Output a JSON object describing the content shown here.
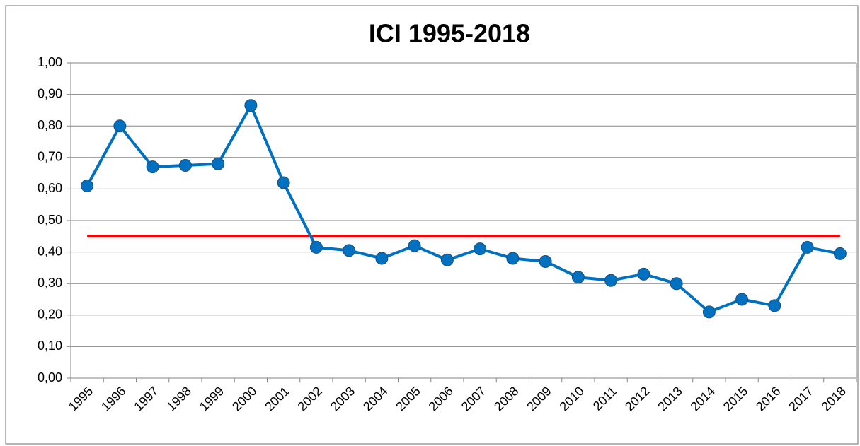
{
  "chart_data": {
    "type": "line",
    "title": "ICI 1995-2018",
    "categories": [
      "1995",
      "1996",
      "1997",
      "1998",
      "1999",
      "2000",
      "2001",
      "2002",
      "2003",
      "2004",
      "2005",
      "2006",
      "2007",
      "2008",
      "2009",
      "2010",
      "2011",
      "2012",
      "2013",
      "2014",
      "2015",
      "2016",
      "2017",
      "2018"
    ],
    "series": [
      {
        "color": "#0070c0",
        "markers": true,
        "values": [
          0.61,
          0.8,
          0.67,
          0.675,
          0.68,
          0.865,
          0.62,
          0.415,
          0.405,
          0.38,
          0.42,
          0.375,
          0.41,
          0.38,
          0.37,
          0.32,
          0.31,
          0.33,
          0.3,
          0.21,
          0.25,
          0.23,
          0.415,
          0.395
        ]
      },
      {
        "color": "#ff0000",
        "markers": false,
        "values": [
          0.45,
          0.45,
          0.45,
          0.45,
          0.45,
          0.45,
          0.45,
          0.45,
          0.45,
          0.45,
          0.45,
          0.45,
          0.45,
          0.45,
          0.45,
          0.45,
          0.45,
          0.45,
          0.45,
          0.45,
          0.45,
          0.45,
          0.45,
          0.45
        ]
      }
    ],
    "ylim": [
      0,
      1
    ],
    "yticks": [
      {
        "value": 0,
        "label": "0,00"
      },
      {
        "value": 0.1,
        "label": "0,10"
      },
      {
        "value": 0.2,
        "label": "0,20"
      },
      {
        "value": 0.3,
        "label": "0,30"
      },
      {
        "value": 0.4,
        "label": "0,40"
      },
      {
        "value": 0.5,
        "label": "0,50"
      },
      {
        "value": 0.6,
        "label": "0,60"
      },
      {
        "value": 0.7,
        "label": "0,70"
      },
      {
        "value": 0.8,
        "label": "0,80"
      },
      {
        "value": 0.9,
        "label": "0,90"
      },
      {
        "value": 1,
        "label": "1,00"
      }
    ],
    "grid": true
  }
}
